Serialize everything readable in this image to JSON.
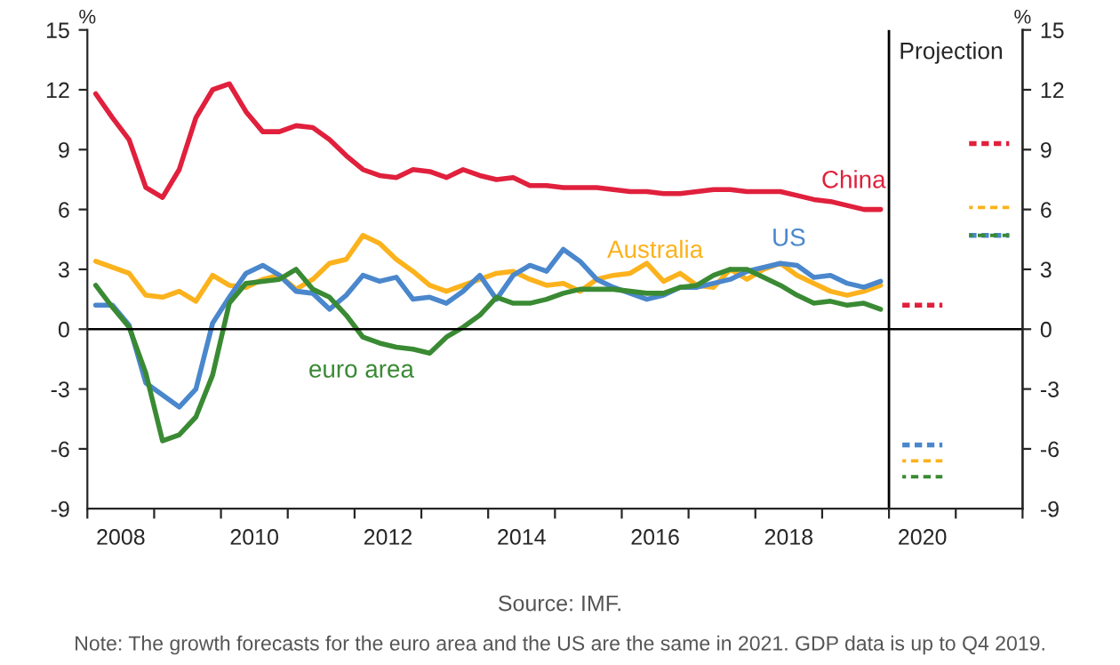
{
  "chart_data": {
    "type": "line",
    "ylabel": "%",
    "y2label": "%",
    "x": [
      2008.125,
      2008.375,
      2008.625,
      2008.875,
      2009.125,
      2009.375,
      2009.625,
      2009.875,
      2010.125,
      2010.375,
      2010.625,
      2010.875,
      2011.125,
      2011.375,
      2011.625,
      2011.875,
      2012.125,
      2012.375,
      2012.625,
      2012.875,
      2013.125,
      2013.375,
      2013.625,
      2013.875,
      2014.125,
      2014.375,
      2014.625,
      2014.875,
      2015.125,
      2015.375,
      2015.625,
      2015.875,
      2016.125,
      2016.375,
      2016.625,
      2016.875,
      2017.125,
      2017.375,
      2017.625,
      2017.875,
      2018.125,
      2018.375,
      2018.625,
      2018.875,
      2019.125,
      2019.375,
      2019.625,
      2019.875
    ],
    "series": [
      {
        "name": "China",
        "color": "#e0203c",
        "values": [
          11.8,
          10.6,
          9.5,
          7.1,
          6.6,
          8.0,
          10.6,
          12.0,
          12.3,
          10.9,
          9.9,
          9.9,
          10.2,
          10.1,
          9.5,
          8.7,
          8.0,
          7.7,
          7.6,
          8.0,
          7.9,
          7.6,
          8.0,
          7.7,
          7.5,
          7.6,
          7.2,
          7.2,
          7.1,
          7.1,
          7.1,
          7.0,
          6.9,
          6.9,
          6.8,
          6.8,
          6.9,
          7.0,
          7.0,
          6.9,
          6.9,
          6.9,
          6.7,
          6.5,
          6.4,
          6.2,
          6.0,
          6.0
        ]
      },
      {
        "name": "Australia",
        "color": "#fbb21c",
        "values": [
          3.4,
          3.1,
          2.8,
          1.7,
          1.6,
          1.9,
          1.4,
          2.7,
          2.2,
          2.1,
          2.5,
          2.7,
          2.0,
          2.5,
          3.3,
          3.5,
          4.7,
          4.3,
          3.5,
          2.9,
          2.2,
          1.9,
          2.2,
          2.5,
          2.8,
          2.9,
          2.5,
          2.2,
          2.3,
          1.9,
          2.5,
          2.7,
          2.8,
          3.3,
          2.4,
          2.8,
          2.2,
          2.1,
          3.0,
          2.5,
          3.0,
          3.3,
          2.7,
          2.3,
          1.9,
          1.7,
          1.9,
          2.2
        ]
      },
      {
        "name": "US",
        "color": "#4a87cc",
        "values": [
          1.2,
          1.2,
          0.2,
          -2.7,
          -3.3,
          -3.9,
          -3.0,
          0.3,
          1.6,
          2.8,
          3.2,
          2.7,
          1.9,
          1.8,
          1.0,
          1.7,
          2.7,
          2.4,
          2.6,
          1.5,
          1.6,
          1.3,
          1.9,
          2.7,
          1.5,
          2.7,
          3.2,
          2.9,
          4.0,
          3.4,
          2.5,
          2.1,
          1.8,
          1.5,
          1.7,
          2.1,
          2.1,
          2.3,
          2.5,
          2.9,
          3.1,
          3.3,
          3.2,
          2.6,
          2.7,
          2.3,
          2.1,
          2.4
        ]
      },
      {
        "name": "euro area",
        "color": "#3a8a34",
        "values": [
          2.2,
          1.1,
          0.1,
          -2.2,
          -5.6,
          -5.3,
          -4.4,
          -2.3,
          1.3,
          2.3,
          2.4,
          2.5,
          3.0,
          2.0,
          1.6,
          0.7,
          -0.4,
          -0.7,
          -0.9,
          -1.0,
          -1.2,
          -0.4,
          0.1,
          0.7,
          1.6,
          1.3,
          1.3,
          1.5,
          1.8,
          2.0,
          2.0,
          2.0,
          1.9,
          1.8,
          1.8,
          2.1,
          2.2,
          2.7,
          3.0,
          3.0,
          2.6,
          2.2,
          1.7,
          1.3,
          1.4,
          1.2,
          1.3,
          1.0
        ]
      },
      {
        "color": "#e0203c",
        "line_style": "dashed",
        "x": [
          2020.2,
          2020.8,
          2021.0,
          2021.2,
          2021.8
        ],
        "values": [
          1.2,
          1.2,
          null,
          9.3,
          9.3
        ]
      },
      {
        "color": "#fbb21c",
        "line_style": "dashed",
        "x": [
          2020.2,
          2020.8,
          2021.0,
          2021.2,
          2021.8
        ],
        "values": [
          -6.6,
          -6.6,
          null,
          6.1,
          6.1
        ]
      },
      {
        "color": "#4a87cc",
        "line_style": "dashed",
        "x": [
          2020.2,
          2020.8,
          2021.0,
          2021.2,
          2021.8
        ],
        "values": [
          -5.8,
          -5.8,
          null,
          4.7,
          4.7
        ]
      },
      {
        "color": "#3a8a34",
        "line_style": "dashed",
        "x": [
          2020.2,
          2020.8,
          2021.0,
          2021.2,
          2021.8
        ],
        "values": [
          -7.4,
          -7.4,
          null,
          4.7,
          4.7
        ]
      }
    ],
    "xlim": [
      2008,
      2022
    ],
    "xticks": [
      {
        "value": 2008,
        "label": null
      },
      {
        "value": 2008.5,
        "label": "2008"
      },
      {
        "value": 2009,
        "label": null
      },
      {
        "value": 2010,
        "label": null
      },
      {
        "value": 2010.5,
        "label": "2010"
      },
      {
        "value": 2011,
        "label": null
      },
      {
        "value": 2012,
        "label": null
      },
      {
        "value": 2012.5,
        "label": "2012"
      },
      {
        "value": 2013,
        "label": null
      },
      {
        "value": 2014,
        "label": null
      },
      {
        "value": 2014.5,
        "label": "2014"
      },
      {
        "value": 2015,
        "label": null
      },
      {
        "value": 2016,
        "label": null
      },
      {
        "value": 2016.5,
        "label": "2016"
      },
      {
        "value": 2017,
        "label": null
      },
      {
        "value": 2018,
        "label": null
      },
      {
        "value": 2018.5,
        "label": "2018"
      },
      {
        "value": 2019,
        "label": null
      },
      {
        "value": 2020,
        "label": null
      },
      {
        "value": 2020.5,
        "label": "2020"
      },
      {
        "value": 2021,
        "label": null
      },
      {
        "value": 2022,
        "label": null
      }
    ],
    "ylim": [
      -9,
      15
    ],
    "yticks": [
      -9,
      -6,
      -3,
      0,
      3,
      6,
      9,
      12,
      15
    ],
    "y2lim": [
      -9,
      15
    ],
    "y2ticks": [
      -9,
      -6,
      -3,
      0,
      3,
      6,
      9,
      12,
      15
    ],
    "ref_lines": [
      {
        "axis": "y",
        "value": 0,
        "color": "#000000"
      },
      {
        "axis": "x",
        "value": 2020,
        "label": "Projection",
        "color": "#000000"
      }
    ],
    "grid": false,
    "legend": false,
    "annotations": [
      "Source: IMF.",
      "Note: The growth forecasts for the euro area and the US are the same in 2021. GDP data is up to Q4 2019."
    ]
  }
}
